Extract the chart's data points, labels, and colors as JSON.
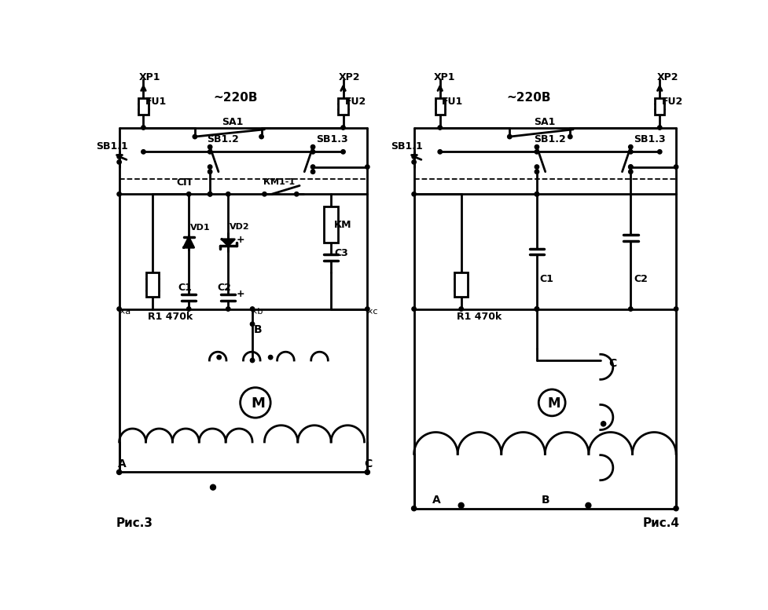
{
  "bg_color": "#ffffff",
  "fig3_label": "Рис.3",
  "fig4_label": "Рис.4",
  "voltage_label": "~220В"
}
